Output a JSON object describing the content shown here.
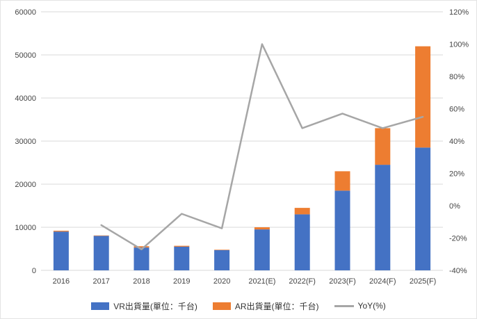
{
  "chart_data": {
    "type": "bar",
    "subtype": "stacked-bar-with-line",
    "categories": [
      "2016",
      "2017",
      "2018",
      "2019",
      "2020",
      "2021(E)",
      "2022(F)",
      "2023(F)",
      "2024(F)",
      "2025(F)"
    ],
    "bar_series": [
      {
        "name": "VR出貨量(單位：千台)",
        "color": "#4472C4",
        "values": [
          9000,
          8000,
          5300,
          5500,
          4700,
          9500,
          13000,
          18500,
          24500,
          28500
        ]
      },
      {
        "name": "AR出貨量(單位：千台)",
        "color": "#ED7D31",
        "values": [
          200,
          100,
          300,
          200,
          100,
          500,
          1500,
          4500,
          8500,
          23500
        ]
      }
    ],
    "line_series": {
      "name": "YoY(%)",
      "color": "#A6A6A6",
      "values": [
        null,
        -12,
        -27,
        -5,
        -14,
        100,
        48,
        57,
        48,
        55
      ]
    },
    "left_axis": {
      "min": 0,
      "max": 60000,
      "step": 10000
    },
    "right_axis": {
      "min": -40,
      "max": 120,
      "step": 20,
      "suffix": "%"
    },
    "grid": true,
    "grid_color": "#d9d9d9",
    "legend_position": "bottom",
    "title": "",
    "xlabel": "",
    "ylabel": ""
  }
}
